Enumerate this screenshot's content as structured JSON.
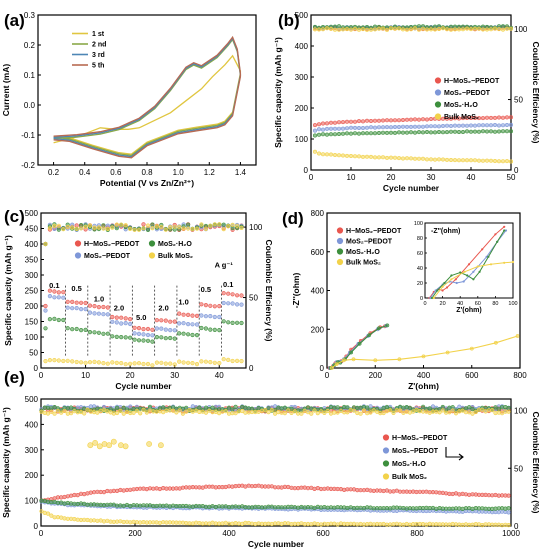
{
  "chart_data": [
    {
      "panel": "(a)",
      "type": "line",
      "xlabel": "Potential (V vs Zn/Zn²⁺)",
      "ylabel": "Current (mA)",
      "xlim": [
        0.1,
        1.5
      ],
      "ylim": [
        -0.2,
        0.3
      ],
      "xticks": [
        0.2,
        0.4,
        0.6,
        0.8,
        1.0,
        1.2,
        1.4
      ],
      "yticks": [
        -0.2,
        -0.1,
        0.0,
        0.1,
        0.2,
        0.3
      ],
      "legend": "top-left",
      "series": [
        {
          "name": "1 st",
          "color": "#e0c640"
        },
        {
          "name": "2 nd",
          "color": "#8aa848"
        },
        {
          "name": "3 rd",
          "color": "#4d86b5"
        },
        {
          "name": "5 th",
          "color": "#b86a52"
        }
      ],
      "cycle_points": {
        "anodic": [
          [
            0.2,
            -0.11
          ],
          [
            0.35,
            -0.105
          ],
          [
            0.5,
            -0.095
          ],
          [
            0.62,
            -0.08
          ],
          [
            0.75,
            -0.05
          ],
          [
            0.85,
            -0.01
          ],
          [
            0.95,
            0.05
          ],
          [
            1.05,
            0.12
          ],
          [
            1.1,
            0.135
          ],
          [
            1.15,
            0.125
          ],
          [
            1.25,
            0.16
          ],
          [
            1.32,
            0.2
          ],
          [
            1.35,
            0.22
          ],
          [
            1.38,
            0.18
          ],
          [
            1.4,
            0.1
          ]
        ],
        "cathodic": [
          [
            1.4,
            0.1
          ],
          [
            1.35,
            -0.03
          ],
          [
            1.3,
            -0.06
          ],
          [
            1.25,
            -0.07
          ],
          [
            1.12,
            -0.08
          ],
          [
            1.0,
            -0.09
          ],
          [
            0.9,
            -0.11
          ],
          [
            0.8,
            -0.13
          ],
          [
            0.7,
            -0.17
          ],
          [
            0.62,
            -0.165
          ],
          [
            0.55,
            -0.155
          ],
          [
            0.45,
            -0.14
          ],
          [
            0.3,
            -0.115
          ],
          [
            0.2,
            -0.11
          ]
        ],
        "first_cycle_anodic": [
          [
            0.2,
            -0.12
          ],
          [
            0.35,
            -0.1
          ],
          [
            0.5,
            -0.07
          ],
          [
            0.6,
            -0.075
          ],
          [
            0.68,
            -0.075
          ],
          [
            0.75,
            -0.07
          ],
          [
            0.85,
            -0.045
          ],
          [
            0.95,
            -0.02
          ],
          [
            1.05,
            0.02
          ],
          [
            1.15,
            0.06
          ],
          [
            1.22,
            0.1
          ],
          [
            1.3,
            0.14
          ],
          [
            1.35,
            0.17
          ],
          [
            1.4,
            0.12
          ]
        ]
      }
    },
    {
      "panel": "(b)",
      "type": "scatter",
      "xlabel": "Cycle number",
      "ylabel": "Specific capacity (mAh g⁻¹)",
      "y2label": "Coulombic Efficiency (%)",
      "xlim": [
        0,
        50
      ],
      "ylim": [
        0,
        500
      ],
      "y2lim": [
        0,
        110
      ],
      "xticks": [
        0,
        10,
        20,
        30,
        40,
        50
      ],
      "yticks": [
        0,
        100,
        200,
        300,
        400,
        500
      ],
      "y2ticks": [
        0,
        50,
        100
      ],
      "legend": "right",
      "series": [
        {
          "name": "H−MoS₂−PEDOT",
          "color": "#e9574f",
          "capacity_start": 145,
          "capacity_end": 170,
          "ce": 100.5
        },
        {
          "name": "MoS₂−PEDOT",
          "color": "#7e97d8",
          "capacity_start": 128,
          "capacity_end": 145,
          "ce": 101
        },
        {
          "name": "MoS₂·H₂O",
          "color": "#3d8f3d",
          "capacity_start": 112,
          "capacity_end": 125,
          "ce": 101.5
        },
        {
          "name": "Bulk MoS₂",
          "color": "#f2d24a",
          "capacity_start": 58,
          "capacity_end": 28,
          "ce": 100
        }
      ]
    },
    {
      "panel": "(c)",
      "type": "scatter",
      "xlabel": "Cycle number",
      "ylabel": "Specific capacity (mAh g⁻¹)",
      "y2label": "Coulombic Efficiency (%)",
      "xlim": [
        0,
        46
      ],
      "ylim": [
        0,
        500
      ],
      "y2lim": [
        0,
        110
      ],
      "xticks": [
        0,
        10,
        20,
        30,
        40
      ],
      "yticks": [
        0,
        50,
        100,
        150,
        200,
        250,
        300,
        350,
        400,
        450,
        500
      ],
      "y2ticks": [
        0,
        50,
        100
      ],
      "legend": "top",
      "unit_label": "A g⁻¹",
      "rate_labels": [
        "0.1",
        "0.5",
        "1.0",
        "2.0",
        "5.0",
        "2.0",
        "1.0",
        "0.5",
        "0.1"
      ],
      "rate_label_x": [
        3,
        8,
        13,
        17.5,
        22.5,
        27.5,
        32,
        37,
        42
      ],
      "rate_label_y": [
        258,
        248,
        215,
        185,
        155,
        185,
        205,
        245,
        262
      ],
      "segment_dividers": [
        5.5,
        10.5,
        15.5,
        20.5,
        25.5,
        30.5,
        35.5,
        40.5
      ],
      "series": [
        {
          "name": "H−MoS₂−PEDOT",
          "color": "#e9574f",
          "levels": [
            250,
            215,
            200,
            165,
            130,
            155,
            175,
            205,
            240
          ]
        },
        {
          "name": "MoS₂−PEDOT",
          "color": "#7e97d8",
          "levels": [
            232,
            195,
            178,
            148,
            112,
            128,
            145,
            170,
            210
          ]
        },
        {
          "name": "MoS₂·H₂O",
          "color": "#3d8f3d",
          "levels": [
            160,
            128,
            116,
            103,
            92,
            100,
            112,
            128,
            150
          ]
        },
        {
          "name": "Bulk MoS₂",
          "color": "#f2d24a",
          "levels": [
            28,
            22,
            20,
            18,
            16,
            18,
            20,
            22,
            27
          ]
        }
      ]
    },
    {
      "panel": "(d)",
      "type": "line",
      "xlabel": "Z'(ohm)",
      "ylabel": "-Z''(ohm)",
      "xlim": [
        0,
        800
      ],
      "ylim": [
        0,
        800
      ],
      "xticks": [
        0,
        200,
        400,
        600,
        800
      ],
      "yticks": [
        0,
        200,
        400,
        600,
        800
      ],
      "legend": "top-left",
      "series": [
        {
          "name": "H−MoS₂−PEDOT",
          "color": "#e9574f",
          "points": [
            [
              10,
              0
            ],
            [
              25,
              10
            ],
            [
              35,
              25
            ],
            [
              45,
              28
            ],
            [
              60,
              35
            ],
            [
              80,
              60
            ],
            [
              100,
              95
            ],
            [
              140,
              140
            ],
            [
              180,
              180
            ],
            [
              220,
              210
            ],
            [
              240,
              215
            ]
          ]
        },
        {
          "name": "MoS₂−PEDOT",
          "color": "#7e97d8",
          "points": [
            [
              12,
              0
            ],
            [
              28,
              12
            ],
            [
              40,
              30
            ],
            [
              52,
              32
            ],
            [
              70,
              45
            ],
            [
              95,
              80
            ],
            [
              130,
              125
            ],
            [
              170,
              165
            ],
            [
              210,
              200
            ],
            [
              245,
              218
            ]
          ]
        },
        {
          "name": "MoS₂·H₂O",
          "color": "#3d8f3d",
          "points": [
            [
              15,
              0
            ],
            [
              30,
              15
            ],
            [
              45,
              30
            ],
            [
              55,
              28
            ],
            [
              75,
              45
            ],
            [
              100,
              80
            ],
            [
              135,
              125
            ],
            [
              175,
              170
            ],
            [
              215,
              205
            ],
            [
              250,
              220
            ]
          ]
        },
        {
          "name": "Bulk MoS₂",
          "color": "#f2d24a",
          "points": [
            [
              20,
              0
            ],
            [
              40,
              20
            ],
            [
              70,
              40
            ],
            [
              110,
              45
            ],
            [
              200,
              40
            ],
            [
              300,
              45
            ],
            [
              400,
              60
            ],
            [
              500,
              80
            ],
            [
              600,
              100
            ],
            [
              700,
              130
            ],
            [
              790,
              165
            ]
          ]
        }
      ],
      "inset": {
        "xlabel": "Z'(ohm)",
        "ylabel": "-Z''(ohm)",
        "xlim": [
          0,
          100
        ],
        "ylim": [
          0,
          100
        ],
        "xticks": [
          0,
          20,
          40,
          60,
          80,
          100
        ],
        "yticks": [
          0,
          20,
          40,
          60,
          80,
          100
        ],
        "series": [
          {
            "color": "#e9574f",
            "points": [
              [
                5,
                0
              ],
              [
                10,
                8
              ],
              [
                15,
                12
              ],
              [
                20,
                10
              ],
              [
                25,
                14
              ],
              [
                35,
                25
              ],
              [
                50,
                45
              ],
              [
                65,
                65
              ],
              [
                80,
                85
              ],
              [
                90,
                95
              ]
            ]
          },
          {
            "color": "#7e97d8",
            "points": [
              [
                6,
                0
              ],
              [
                12,
                10
              ],
              [
                20,
                18
              ],
              [
                28,
                22
              ],
              [
                36,
                20
              ],
              [
                44,
                22
              ],
              [
                55,
                35
              ],
              [
                70,
                55
              ],
              [
                82,
                75
              ],
              [
                92,
                90
              ]
            ]
          },
          {
            "color": "#3d8f3d",
            "points": [
              [
                8,
                0
              ],
              [
                14,
                10
              ],
              [
                22,
                20
              ],
              [
                30,
                30
              ],
              [
                40,
                34
              ],
              [
                48,
                30
              ],
              [
                55,
                25
              ],
              [
                62,
                35
              ],
              [
                72,
                55
              ],
              [
                82,
                75
              ],
              [
                90,
                90
              ]
            ]
          },
          {
            "color": "#f2d24a",
            "points": [
              [
                10,
                0
              ],
              [
                20,
                15
              ],
              [
                30,
                25
              ],
              [
                45,
                35
              ],
              [
                60,
                42
              ],
              [
                75,
                45
              ],
              [
                90,
                47
              ],
              [
                100,
                48
              ]
            ]
          }
        ]
      }
    },
    {
      "panel": "(e)",
      "type": "scatter",
      "xlabel": "Cycle number",
      "ylabel": "Specific capacity (mAh g⁻¹)",
      "y2label": "Coulombic Efficiency (%)",
      "xlim": [
        0,
        1000
      ],
      "ylim": [
        0,
        500
      ],
      "y2lim": [
        0,
        110
      ],
      "xticks": [
        0,
        200,
        400,
        600,
        800,
        1000
      ],
      "yticks": [
        0,
        100,
        200,
        300,
        400,
        500
      ],
      "y2ticks": [
        0,
        50,
        100
      ],
      "legend": "right",
      "series": [
        {
          "name": "H−MoS₂−PEDOT",
          "color": "#e9574f",
          "capacity_points": [
            [
              0,
              100
            ],
            [
              50,
              115
            ],
            [
              100,
              130
            ],
            [
              200,
              145
            ],
            [
              300,
              150
            ],
            [
              450,
              158
            ],
            [
              550,
              150
            ],
            [
              700,
              140
            ],
            [
              800,
              135
            ],
            [
              900,
              125
            ],
            [
              1000,
              118
            ]
          ],
          "ce": 101
        },
        {
          "name": "MoS₂−PEDOT",
          "color": "#7e97d8",
          "capacity_points": [
            [
              0,
              95
            ],
            [
              50,
              85
            ],
            [
              100,
              80
            ],
            [
              200,
              75
            ],
            [
              300,
              72
            ],
            [
              450,
              70
            ],
            [
              600,
              65
            ],
            [
              800,
              60
            ],
            [
              1000,
              55
            ]
          ],
          "ce": 102
        },
        {
          "name": "MoS₂·H₂O",
          "color": "#3d8f3d",
          "capacity_points": [
            [
              0,
              100
            ],
            [
              50,
              90
            ],
            [
              100,
              85
            ],
            [
              200,
              80
            ],
            [
              300,
              78
            ],
            [
              450,
              75
            ],
            [
              600,
              73
            ],
            [
              800,
              70
            ],
            [
              1000,
              68
            ]
          ],
          "ce": 101.5
        },
        {
          "name": "Bulk MoS₂",
          "color": "#f2d24a",
          "capacity_points": [
            [
              0,
              60
            ],
            [
              30,
              35
            ],
            [
              80,
              25
            ],
            [
              150,
              18
            ],
            [
              300,
              12
            ],
            [
              600,
              8
            ],
            [
              1000,
              5
            ]
          ],
          "ce": 99
        }
      ],
      "low_ce_cluster": {
        "x": [
          105,
          115,
          125,
          135,
          145,
          155,
          170,
          180,
          230,
          255
        ],
        "ce": [
          70,
          72,
          69,
          71,
          70,
          73,
          70,
          69,
          71,
          70
        ]
      }
    }
  ]
}
